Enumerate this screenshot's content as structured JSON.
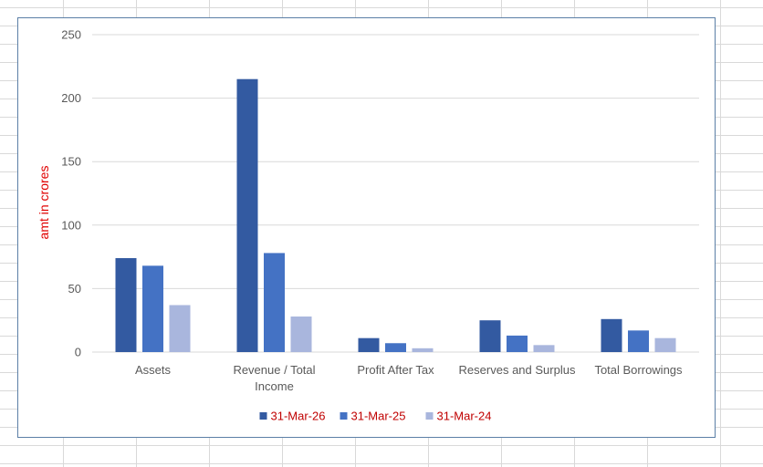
{
  "chart_data": {
    "type": "bar",
    "title": "",
    "xlabel": "",
    "ylabel": "amt in crores",
    "ylim": [
      0,
      250
    ],
    "yticks": [
      0,
      50,
      100,
      150,
      200,
      250
    ],
    "grid": true,
    "legend_position": "bottom",
    "categories": [
      [
        "Assets"
      ],
      [
        "Revenue / Total",
        "Income"
      ],
      [
        "Profit After Tax"
      ],
      [
        "Reserves and Surplus"
      ],
      [
        "Total Borrowings"
      ]
    ],
    "series": [
      {
        "name": "31-Mar-26",
        "color": "#335aa1",
        "values": [
          74,
          215,
          11,
          25,
          26
        ]
      },
      {
        "name": "31-Mar-25",
        "color": "#4472c4",
        "values": [
          68,
          78,
          7,
          13,
          17
        ]
      },
      {
        "name": "31-Mar-24",
        "color": "#a9b6dd",
        "values": [
          37,
          28,
          3,
          5.5,
          11
        ]
      }
    ],
    "colors": {
      "ylabel": "#e00000",
      "legend_text": "#c00000",
      "gridline": "#d9d9d9",
      "axis_text": "#595959"
    }
  }
}
